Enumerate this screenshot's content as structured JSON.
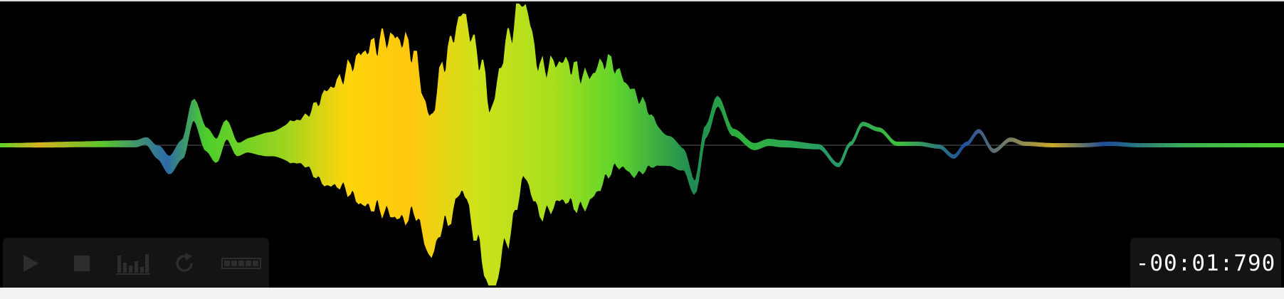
{
  "player": {
    "time_display": "-00:01:790",
    "controls": [
      {
        "name": "play-button",
        "icon": "play-icon"
      },
      {
        "name": "stop-button",
        "icon": "stop-icon"
      },
      {
        "name": "spectrum-button",
        "icon": "spectrum-bars-icon"
      },
      {
        "name": "loop-button",
        "icon": "loop-icon"
      },
      {
        "name": "level-meter",
        "icon": "level-meter-icon"
      }
    ]
  },
  "colors": {
    "background": "#000000",
    "wave_low": "#1c4c9a",
    "wave_mid": "#4cd12e",
    "wave_high": "#ffd400",
    "control_icon": "#2d2d2d",
    "timer_text": "#ffffff"
  }
}
